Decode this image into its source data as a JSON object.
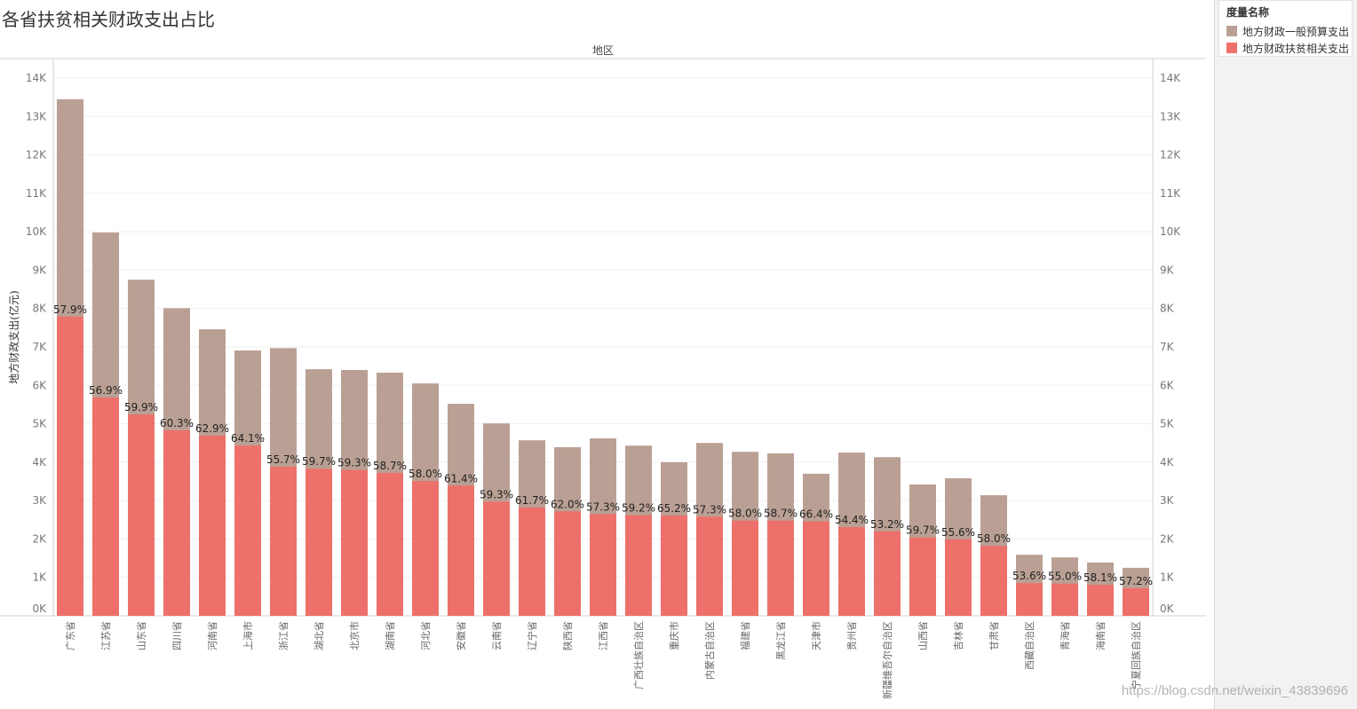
{
  "chart_data": {
    "type": "bar",
    "bar_mode": "overlay",
    "title": "各省扶贫相关财政支出占比",
    "xlabel": "地区",
    "ylabel": "地方财政支出(亿元)",
    "ylim": [
      0,
      14500
    ],
    "y_ticks": [
      "0K",
      "1K",
      "2K",
      "3K",
      "4K",
      "5K",
      "6K",
      "7K",
      "8K",
      "9K",
      "10K",
      "11K",
      "12K",
      "13K",
      "14K"
    ],
    "y_tick_values": [
      0,
      1000,
      2000,
      3000,
      4000,
      5000,
      6000,
      7000,
      8000,
      9000,
      10000,
      11000,
      12000,
      13000,
      14000
    ],
    "grid": true,
    "legend": {
      "title": "度量名称",
      "position": "right"
    },
    "categories": [
      "广东省",
      "江苏省",
      "山东省",
      "四川省",
      "河南省",
      "上海市",
      "浙江省",
      "湖北省",
      "北京市",
      "湖南省",
      "河北省",
      "安徽省",
      "云南省",
      "辽宁省",
      "陕西省",
      "江西省",
      "广西壮族自治区",
      "重庆市",
      "内蒙古自治区",
      "福建省",
      "黑龙江省",
      "天津市",
      "贵州省",
      "新疆维吾尔自治区",
      "山西省",
      "吉林省",
      "甘肃省",
      "西藏自治区",
      "青海省",
      "海南省",
      "宁夏回族自治区"
    ],
    "series": [
      {
        "name": "地方财政一般预算支出",
        "color": "#BAA094",
        "values": [
          13450,
          9980,
          8750,
          8010,
          7460,
          6910,
          6970,
          6420,
          6400,
          6330,
          6050,
          5520,
          5010,
          4570,
          4390,
          4620,
          4430,
          4000,
          4500,
          4270,
          4230,
          3700,
          4250,
          4130,
          3420,
          3580,
          3140,
          1590,
          1520,
          1390,
          1250
        ]
      },
      {
        "name": "地方财政扶贫相关支出",
        "color": "#EE706A",
        "values": [
          7790,
          5680,
          5240,
          4830,
          4690,
          4430,
          3880,
          3830,
          3800,
          3720,
          3510,
          3390,
          2970,
          2820,
          2720,
          2650,
          2620,
          2610,
          2580,
          2480,
          2480,
          2460,
          2310,
          2200,
          2040,
          1990,
          1820,
          850,
          840,
          810,
          720
        ]
      }
    ],
    "data_labels": [
      "57.9%",
      "56.9%",
      "59.9%",
      "60.3%",
      "62.9%",
      "64.1%",
      "55.7%",
      "59.7%",
      "59.3%",
      "58.7%",
      "58.0%",
      "61.4%",
      "59.3%",
      "61.7%",
      "62.0%",
      "57.3%",
      "59.2%",
      "65.2%",
      "57.3%",
      "58.0%",
      "58.7%",
      "66.4%",
      "54.4%",
      "53.2%",
      "59.7%",
      "55.6%",
      "58.0%",
      "53.6%",
      "55.0%",
      "58.1%",
      "57.2%"
    ]
  },
  "watermark": "https://blog.csdn.net/weixin_43839696"
}
